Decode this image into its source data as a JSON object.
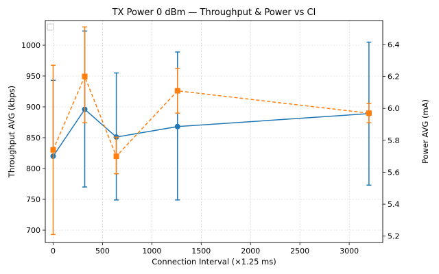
{
  "chart_data": {
    "type": "line",
    "title": "TX Power 0 dBm — Throughput & Power vs CI",
    "xlabel": "Connection Interval (×1.25 ms)",
    "ylabel_left": "Throughput AVG (kbps)",
    "ylabel_right": "Power AVG (mA)",
    "xlim": [
      -80,
      3340
    ],
    "ylim_left": [
      680,
      1040
    ],
    "ylim_right": [
      5.16,
      6.55
    ],
    "x_ticks": [
      0,
      500,
      1000,
      1500,
      2000,
      2500,
      3000
    ],
    "y_ticks_left": [
      700,
      750,
      800,
      850,
      900,
      950,
      1000
    ],
    "y_ticks_right": [
      5.2,
      5.4,
      5.6,
      5.8,
      6.0,
      6.2,
      6.4
    ],
    "grid": true,
    "legend": "top-left (empty)",
    "series": [
      {
        "axis": "left",
        "color": "#1f77b4",
        "style": "solid",
        "marker": "circle",
        "points": [
          {
            "x": 0,
            "y": 820,
            "err_low": 820,
            "err_high": 943
          },
          {
            "x": 320,
            "y": 896,
            "err_low": 770,
            "err_high": 1023
          },
          {
            "x": 640,
            "y": 851,
            "err_low": 749,
            "err_high": 955
          },
          {
            "x": 1260,
            "y": 868,
            "err_low": 749,
            "err_high": 989
          },
          {
            "x": 3200,
            "y": 889,
            "err_low": 773,
            "err_high": 1005
          }
        ]
      },
      {
        "axis": "right",
        "color": "#ff7f0e",
        "style": "dashed",
        "marker": "square",
        "points": [
          {
            "x": 0,
            "y": 5.74,
            "err_low": 5.21,
            "err_high": 6.27
          },
          {
            "x": 320,
            "y": 6.2,
            "err_low": 5.91,
            "err_high": 6.51
          },
          {
            "x": 640,
            "y": 5.7,
            "err_low": 5.59,
            "err_high": 5.82
          },
          {
            "x": 1260,
            "y": 6.11,
            "err_low": 5.97,
            "err_high": 6.25
          },
          {
            "x": 3200,
            "y": 5.97,
            "err_low": 5.91,
            "err_high": 6.03
          }
        ]
      }
    ]
  }
}
